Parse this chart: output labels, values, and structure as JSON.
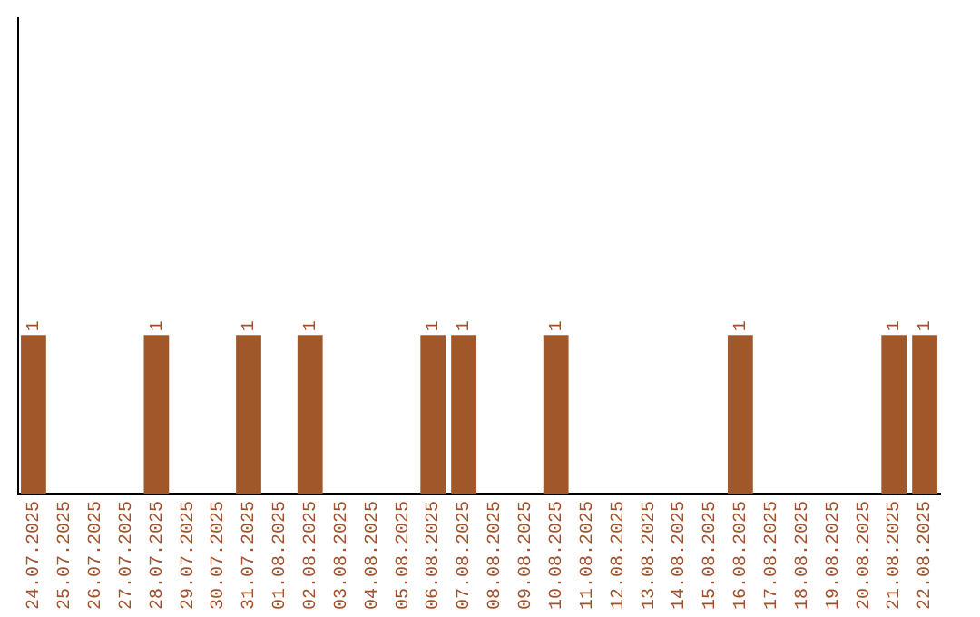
{
  "chart_data": {
    "type": "bar",
    "categories": [
      "24.07.2025",
      "25.07.2025",
      "26.07.2025",
      "27.07.2025",
      "28.07.2025",
      "29.07.2025",
      "30.07.2025",
      "31.07.2025",
      "01.08.2025",
      "02.08.2025",
      "03.08.2025",
      "04.08.2025",
      "05.08.2025",
      "06.08.2025",
      "07.08.2025",
      "08.08.2025",
      "09.08.2025",
      "10.08.2025",
      "11.08.2025",
      "12.08.2025",
      "13.08.2025",
      "14.08.2025",
      "15.08.2025",
      "16.08.2025",
      "17.08.2025",
      "18.08.2025",
      "19.08.2025",
      "20.08.2025",
      "21.08.2025",
      "22.08.2025"
    ],
    "values": [
      1,
      0,
      0,
      0,
      1,
      0,
      0,
      1,
      0,
      1,
      0,
      0,
      0,
      1,
      1,
      0,
      0,
      1,
      0,
      0,
      0,
      0,
      0,
      1,
      0,
      0,
      0,
      0,
      1,
      1
    ],
    "value_labels": [
      "1",
      null,
      null,
      null,
      "1",
      null,
      null,
      "1",
      null,
      "1",
      null,
      null,
      null,
      "1",
      "1",
      null,
      null,
      "1",
      null,
      null,
      null,
      null,
      null,
      "1",
      null,
      null,
      null,
      null,
      "1",
      "1"
    ],
    "color": "#a0582a",
    "ylim": [
      0,
      3
    ],
    "tick_labels": "x",
    "grid": false,
    "legend": false
  }
}
